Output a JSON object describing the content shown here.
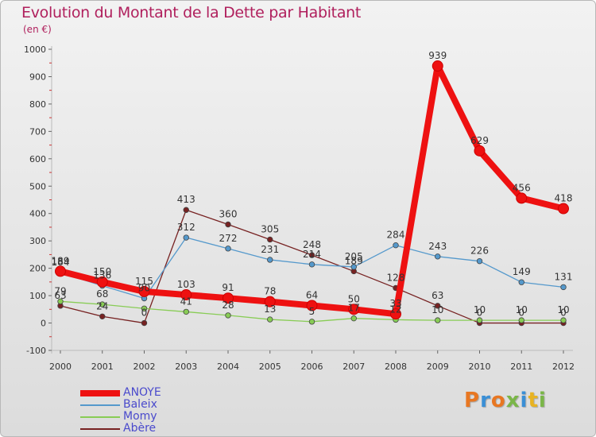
{
  "title": "Evolution du Montant de la Dette par Habitant",
  "unit_label": "(en €)",
  "logo_text": "Proxiti",
  "chart_data": {
    "type": "line",
    "title": "Evolution du Montant de la Dette par Habitant",
    "subtitle": "(en €)",
    "categories": [
      "2000",
      "2001",
      "2002",
      "2003",
      "2004",
      "2005",
      "2006",
      "2007",
      "2008",
      "2009",
      "2010",
      "2011",
      "2012"
    ],
    "ylim": [
      -100,
      1000
    ],
    "yticks": [
      -100,
      0,
      100,
      200,
      300,
      400,
      500,
      600,
      700,
      800,
      900,
      1000
    ],
    "grid": false,
    "legend_position": "bottom-left",
    "series": [
      {
        "name": "ANOYE",
        "color": "#ee1111",
        "values": [
          189,
          150,
          115,
          103,
          91,
          78,
          64,
          50,
          33,
          939,
          629,
          456,
          418
        ],
        "labels": [
          "189",
          "150",
          "115",
          "103",
          "91",
          "78",
          "64",
          "50",
          "33",
          "939",
          "629",
          "456",
          "418"
        ]
      },
      {
        "name": "Baleix",
        "color": "#5599cc",
        "values": [
          184,
          136,
          90,
          312,
          272,
          231,
          214,
          205,
          284,
          243,
          226,
          149,
          131
        ],
        "labels": [
          "184",
          "136",
          "90",
          "312",
          "272",
          "231",
          "214",
          "205",
          "284",
          "243",
          "226",
          "149",
          "131"
        ]
      },
      {
        "name": "Momy",
        "color": "#88cc55",
        "values": [
          79,
          68,
          53,
          41,
          28,
          13,
          5,
          17,
          12,
          10,
          10,
          10,
          10
        ],
        "labels": [
          "79",
          "68",
          "",
          "41",
          "28",
          "13",
          "5",
          "17",
          "12",
          "10",
          "10",
          "10",
          "10"
        ]
      },
      {
        "name": "Abère",
        "color": "#772222",
        "values": [
          63,
          24,
          0,
          413,
          360,
          305,
          248,
          189,
          128,
          63,
          0,
          0,
          0
        ],
        "labels": [
          "63",
          "24",
          "0",
          "413",
          "360",
          "305",
          "248",
          "189",
          "128",
          "63",
          "0",
          "0",
          "0"
        ]
      }
    ]
  }
}
